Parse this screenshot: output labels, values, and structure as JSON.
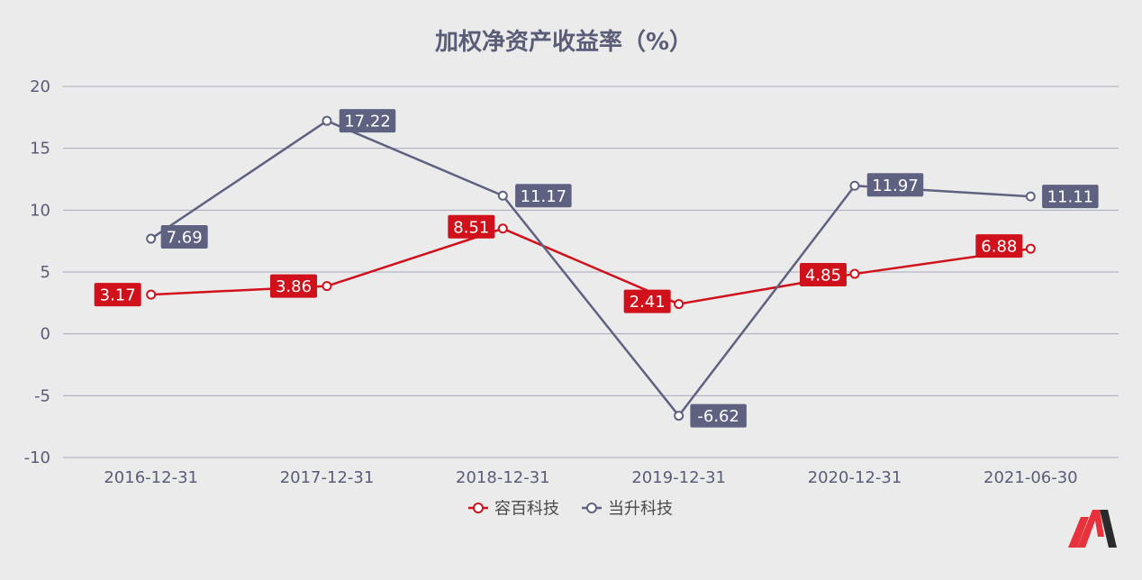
{
  "chart_data": {
    "type": "line",
    "title": "加权净资产收益率（%）",
    "categories": [
      "2016-12-31",
      "2017-12-31",
      "2018-12-31",
      "2019-12-31",
      "2020-12-31",
      "2021-06-30"
    ],
    "ylim": [
      -10,
      20
    ],
    "yticks": [
      20,
      15,
      10,
      5,
      0,
      -5,
      -10
    ],
    "grid": true,
    "legend_position": "bottom-center",
    "series": [
      {
        "name": "容百科技",
        "color": "#d0111b",
        "values": [
          3.17,
          3.86,
          8.51,
          2.41,
          4.85,
          6.88
        ],
        "labels": [
          "3.17",
          "3.86",
          "8.51",
          "2.41",
          "4.85",
          "6.88"
        ]
      },
      {
        "name": "当升科技",
        "color": "#5e6280",
        "values": [
          7.69,
          17.22,
          11.17,
          -6.62,
          11.97,
          11.11
        ],
        "labels": [
          "7.69",
          "17.22",
          "11.17",
          "-6.62",
          "11.97",
          "11.11"
        ]
      }
    ]
  },
  "logo": {
    "name": "logo-icon",
    "colors": [
      "#e8323b",
      "#2b2b2b"
    ]
  }
}
